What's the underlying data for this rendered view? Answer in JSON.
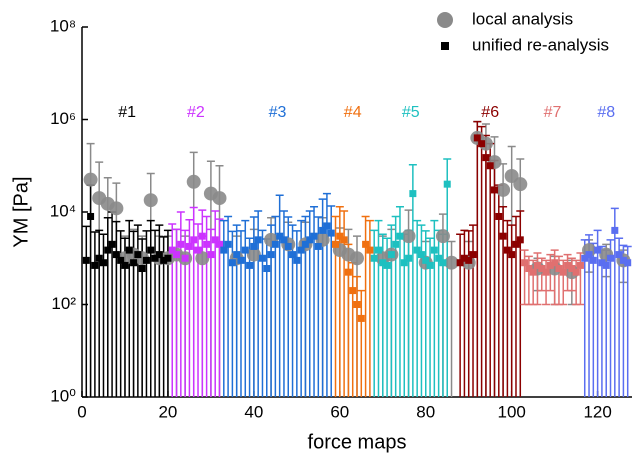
{
  "chart_data": {
    "type": "scatter",
    "x_label": "force maps",
    "y_label": "YM [Pa]",
    "xlim": [
      0,
      128
    ],
    "xticks": [
      0,
      20,
      40,
      60,
      80,
      100,
      120
    ],
    "ylim": [
      1,
      100000000
    ],
    "log_y": true,
    "yticks": [
      {
        "value": 1,
        "label": "10⁰"
      },
      {
        "value": 100,
        "label": "10²"
      },
      {
        "value": 10000,
        "label": "10⁴"
      },
      {
        "value": 1000000,
        "label": "10⁶"
      },
      {
        "value": 100000000,
        "label": "10⁸"
      }
    ],
    "legend": "top-right",
    "series": [
      {
        "name": "local analysis",
        "color": "#8a8a8a",
        "marker": "circle",
        "x": [
          2,
          4,
          6,
          8,
          10,
          12,
          14,
          16,
          18,
          20,
          22,
          24,
          26,
          28,
          30,
          32,
          36,
          40,
          44,
          48,
          52,
          56,
          60,
          62,
          64,
          70,
          72,
          76,
          80,
          84,
          86,
          90,
          92,
          94,
          96,
          98,
          100,
          102,
          106,
          110,
          114,
          118,
          122,
          126
        ],
        "values": [
          50000,
          20000,
          15000,
          12000,
          1000,
          1200,
          1000,
          18000,
          1000,
          1000,
          1200,
          1000,
          45000,
          1000,
          25000,
          20000,
          1000,
          1200,
          2500,
          2000,
          2000,
          2500,
          1500,
          1200,
          1000,
          1000,
          1200,
          3000,
          800,
          3000,
          800,
          800,
          400000,
          300000,
          120000,
          30000,
          60000,
          40000,
          600,
          600,
          500,
          1500,
          1200,
          900
        ],
        "errors": [
          250000,
          100000,
          40000,
          30000,
          2000,
          3000,
          2000,
          50000,
          2000,
          2000,
          3000,
          2000,
          150000,
          2000,
          100000,
          80000,
          2000,
          3000,
          5000,
          4000,
          4000,
          5000,
          3000,
          3000,
          2000,
          2000,
          3000,
          8000,
          1500,
          6000,
          1500,
          1500,
          500000,
          500000,
          300000,
          80000,
          200000,
          100000,
          400,
          500,
          400,
          1000,
          800,
          600
        ]
      },
      {
        "name": "unified re-analysis",
        "color": "#000000",
        "marker": "square",
        "groups": [
          {
            "label": "#1",
            "color": "#000000",
            "x": [
              1,
              2,
              3,
              4,
              5,
              6,
              7,
              8,
              9,
              10,
              11,
              12,
              13,
              14,
              15,
              16,
              17,
              18,
              19,
              20
            ],
            "values": [
              900,
              8000,
              700,
              1000,
              800,
              1500,
              2000,
              1200,
              900,
              700,
              1500,
              800,
              1200,
              600,
              900,
              1500,
              1000,
              1200,
              900,
              1000
            ],
            "errors": [
              4000,
              30000,
              3000,
              3000,
              2500,
              6000,
              8000,
              5000,
              3000,
              2000,
              5000,
              3000,
              4000,
              2000,
              3000,
              5000,
              3000,
              4000,
              2000,
              3000
            ]
          },
          {
            "label": "#2",
            "color": "#cc33ff",
            "x": [
              21,
              22,
              23,
              24,
              25,
              26,
              27,
              28,
              29,
              30,
              31,
              32
            ],
            "values": [
              1500,
              1200,
              2000,
              1000,
              1800,
              2500,
              1500,
              3000,
              2000,
              1200,
              2500,
              2000
            ],
            "errors": [
              4000,
              3000,
              8000,
              3000,
              5000,
              10000,
              4000,
              8000,
              6000,
              3000,
              8000,
              5000
            ]
          },
          {
            "label": "#3",
            "color": "#1f6fd6",
            "x": [
              33,
              34,
              35,
              36,
              37,
              38,
              39,
              40,
              41,
              42,
              43,
              44,
              45,
              46,
              47,
              48,
              49,
              50,
              51,
              52,
              53,
              54,
              55,
              56,
              57,
              58
            ],
            "values": [
              1500,
              2000,
              800,
              1200,
              900,
              1500,
              700,
              1800,
              2500,
              1000,
              600,
              1200,
              2000,
              3000,
              2500,
              1800,
              1200,
              900,
              1500,
              2000,
              2500,
              3000,
              1800,
              4000,
              5000,
              3500
            ],
            "errors": [
              5000,
              6000,
              3000,
              4000,
              3000,
              5000,
              2000,
              6000,
              8000,
              3000,
              2000,
              4000,
              6000,
              20000,
              8000,
              6000,
              4000,
              3000,
              5000,
              6000,
              8000,
              10000,
              6000,
              15000,
              20000,
              10000
            ]
          },
          {
            "label": "#4",
            "color": "#f07010",
            "x": [
              59,
              60,
              61,
              62,
              63,
              64,
              65,
              66,
              67
            ],
            "values": [
              2000,
              3000,
              2500,
              500,
              200,
              100,
              50,
              2000,
              1500
            ],
            "errors": [
              6000,
              10000,
              8000,
              1500,
              600,
              300,
              150,
              6000,
              5000
            ]
          },
          {
            "label": "#5",
            "color": "#1ec0c0",
            "x": [
              68,
              69,
              70,
              71,
              72,
              73,
              74,
              75,
              76,
              77,
              78,
              79,
              80,
              81,
              82,
              83,
              84,
              85
            ],
            "values": [
              1000,
              1500,
              800,
              700,
              1200,
              2000,
              3000,
              800,
              1000,
              25000,
              1500,
              1200,
              900,
              700,
              1500,
              1000,
              800,
              40000
            ],
            "errors": [
              3000,
              5000,
              2500,
              2000,
              4000,
              6000,
              10000,
              2500,
              3000,
              80000,
              5000,
              4000,
              3000,
              2000,
              5000,
              3000,
              2500,
              100000
            ]
          },
          {
            "label": "#6",
            "color": "#8b0000",
            "x": [
              88,
              89,
              90,
              91,
              92,
              93,
              94,
              95,
              96,
              97,
              98,
              99,
              100,
              101,
              102
            ],
            "values": [
              800,
              1000,
              900,
              1200,
              400000,
              300000,
              150000,
              100000,
              30000,
              8000,
              3000,
              1500,
              1200,
              2000,
              2500
            ],
            "errors": [
              2500,
              3000,
              3000,
              4000,
              500000,
              400000,
              300000,
              200000,
              100000,
              30000,
              10000,
              5000,
              4000,
              6000,
              8000
            ]
          },
          {
            "label": "#7",
            "color": "#e07070",
            "x": [
              103,
              104,
              105,
              106,
              107,
              108,
              109,
              110,
              111,
              112,
              113,
              114,
              115,
              116
            ],
            "values": [
              800,
              600,
              500,
              700,
              600,
              500,
              700,
              800,
              600,
              500,
              700,
              600,
              500,
              700
            ],
            "errors": [
              700,
              500,
              400,
              600,
              400,
              400,
              500,
              700,
              500,
              400,
              500,
              400,
              400,
              600
            ]
          },
          {
            "label": "#8",
            "color": "#5a6ef0",
            "x": [
              117,
              118,
              119,
              120,
              121,
              122,
              123,
              124,
              125,
              126,
              127
            ],
            "values": [
              1000,
              1200,
              900,
              1500,
              800,
              700,
              1000,
              4000,
              1200,
              900,
              800
            ],
            "errors": [
              1500,
              2000,
              1200,
              2500,
              1000,
              800,
              1500,
              8000,
              1500,
              1000,
              1000
            ]
          }
        ]
      }
    ]
  }
}
